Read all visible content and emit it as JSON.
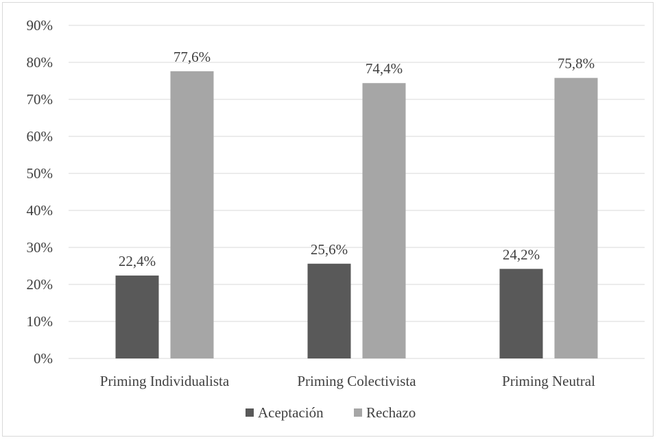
{
  "chart_data": {
    "type": "bar",
    "categories": [
      "Priming Individualista",
      "Priming Colectivista",
      "Priming Neutral"
    ],
    "series": [
      {
        "name": "Aceptación",
        "values": [
          22.4,
          25.6,
          24.2
        ],
        "labels": [
          "22,4%",
          "25,6%",
          "24,2%"
        ],
        "color": "#595959"
      },
      {
        "name": "Rechazo",
        "values": [
          77.6,
          74.4,
          75.8
        ],
        "labels": [
          "77,6%",
          "74,4%",
          "75,8%"
        ],
        "color": "#a6a6a6"
      }
    ],
    "ylim": [
      0,
      90
    ],
    "yticks": [
      0,
      10,
      20,
      30,
      40,
      50,
      60,
      70,
      80,
      90
    ],
    "ytick_labels": [
      "0%",
      "10%",
      "20%",
      "30%",
      "40%",
      "50%",
      "60%",
      "70%",
      "80%",
      "90%"
    ],
    "grid": true,
    "legend_position": "bottom",
    "title": "",
    "xlabel": "",
    "ylabel": ""
  }
}
